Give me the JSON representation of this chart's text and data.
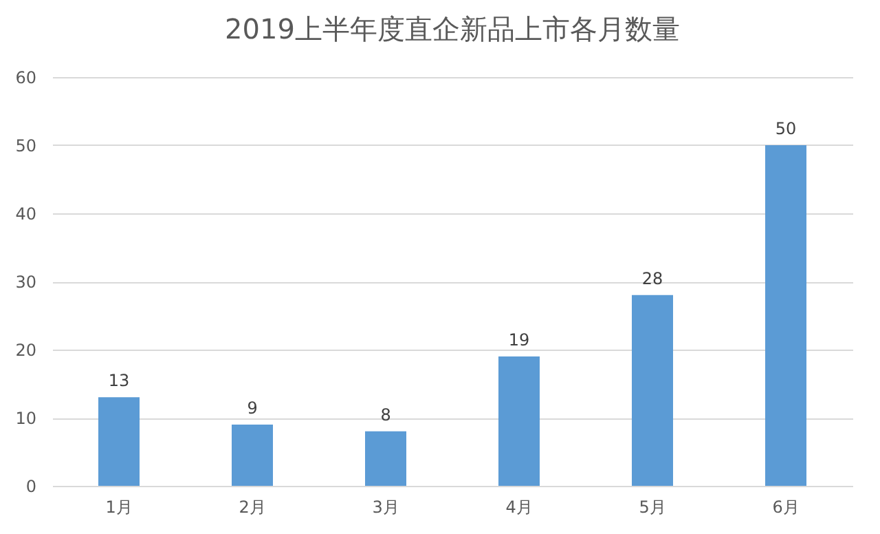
{
  "chart_data": {
    "type": "bar",
    "title": "2019上半年度直企新品上市各月数量",
    "categories": [
      "1月",
      "2月",
      "3月",
      "4月",
      "5月",
      "6月"
    ],
    "values": [
      13,
      9,
      8,
      19,
      28,
      50
    ],
    "color": "#5b9bd5",
    "ylim": [
      0,
      60
    ],
    "yticks": [
      0,
      10,
      20,
      30,
      40,
      50,
      60
    ],
    "grid": "y",
    "data_labels": true
  }
}
